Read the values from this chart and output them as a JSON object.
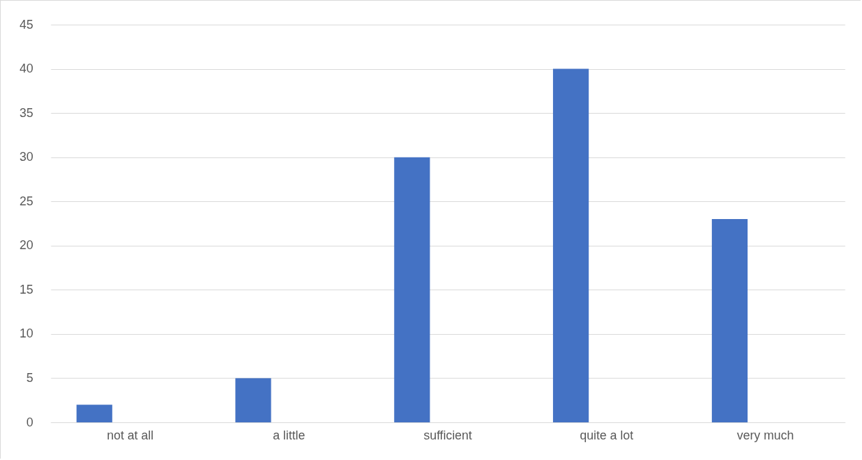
{
  "chart_data": {
    "type": "bar",
    "categories": [
      "not at all",
      "a little",
      "sufficient",
      "quite a lot",
      "very much"
    ],
    "values": [
      2,
      5,
      30,
      40,
      23
    ],
    "color": "#4472c4",
    "ylim": [
      0,
      45
    ],
    "yticks": [
      0,
      5,
      10,
      15,
      20,
      25,
      30,
      35,
      40,
      45
    ],
    "grid": "y"
  }
}
